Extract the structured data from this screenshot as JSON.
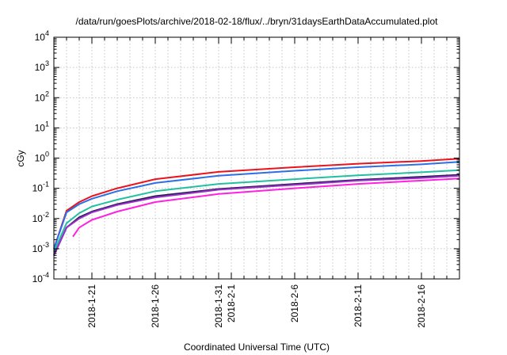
{
  "chart_data": {
    "type": "line",
    "title": "/data/run/goesPlots/archive/2018-02-18/flux/../bryn/31daysEarthDataAccumulated.plot",
    "xlabel": "Coordinated Universal Time (UTC)",
    "ylabel": "cGy",
    "yscale": "log",
    "ylim": [
      0.0001,
      10000
    ],
    "y_ticks": [
      {
        "exp": "-4",
        "value": 0.0001
      },
      {
        "exp": "-3",
        "value": 0.001
      },
      {
        "exp": "-2",
        "value": 0.01
      },
      {
        "exp": "-1",
        "value": 0.1
      },
      {
        "exp": "0",
        "value": 1
      },
      {
        "exp": "1",
        "value": 10
      },
      {
        "exp": "2",
        "value": 100
      },
      {
        "exp": "3",
        "value": 1000
      },
      {
        "exp": "4",
        "value": 10000
      }
    ],
    "y_tick_base": "10",
    "xlim": [
      "2018-01-18",
      "2018-02-19"
    ],
    "x_ticks": [
      {
        "date": "2018-01-21",
        "label": "2018-1-21"
      },
      {
        "date": "2018-01-26",
        "label": "2018-1-26"
      },
      {
        "date": "2018-01-31",
        "label": "2018-1-31"
      },
      {
        "date": "2018-02-01",
        "label": "2018-2-1"
      },
      {
        "date": "2018-02-06",
        "label": "2018-2-6"
      },
      {
        "date": "2018-02-11",
        "label": "2018-2-11"
      },
      {
        "date": "2018-02-16",
        "label": "2018-2-16"
      }
    ],
    "grid": true,
    "series": [
      {
        "color": "#e8141e",
        "x": [
          "2018-01-18",
          "2018-01-19",
          "2018-01-20",
          "2018-01-21",
          "2018-01-23",
          "2018-01-26",
          "2018-01-31",
          "2018-02-06",
          "2018-02-11",
          "2018-02-16",
          "2018-02-19"
        ],
        "values": [
          0.001,
          0.018,
          0.035,
          0.055,
          0.1,
          0.2,
          0.35,
          0.5,
          0.65,
          0.8,
          0.95
        ]
      },
      {
        "color": "#2e6fe6",
        "x": [
          "2018-01-18",
          "2018-01-19",
          "2018-01-20",
          "2018-01-21",
          "2018-01-23",
          "2018-01-26",
          "2018-01-31",
          "2018-02-06",
          "2018-02-11",
          "2018-02-16",
          "2018-02-19"
        ],
        "values": [
          0.001,
          0.016,
          0.03,
          0.045,
          0.08,
          0.15,
          0.26,
          0.38,
          0.5,
          0.62,
          0.75
        ]
      },
      {
        "color": "#22c0a0",
        "x": [
          "2018-01-18",
          "2018-01-19",
          "2018-01-20",
          "2018-01-21",
          "2018-01-23",
          "2018-01-26",
          "2018-01-31",
          "2018-02-06",
          "2018-02-11",
          "2018-02-16",
          "2018-02-19"
        ],
        "values": [
          0.0008,
          0.007,
          0.015,
          0.025,
          0.042,
          0.08,
          0.14,
          0.2,
          0.27,
          0.34,
          0.4
        ]
      },
      {
        "color": "#1e1e50",
        "x": [
          "2018-01-18",
          "2018-01-19",
          "2018-01-20",
          "2018-01-21",
          "2018-01-23",
          "2018-01-26",
          "2018-01-31",
          "2018-02-06",
          "2018-02-11",
          "2018-02-16",
          "2018-02-19"
        ],
        "values": [
          0.0006,
          0.005,
          0.011,
          0.017,
          0.03,
          0.055,
          0.095,
          0.14,
          0.19,
          0.24,
          0.28
        ]
      },
      {
        "color": "#9b2ec8",
        "x": [
          "2018-01-18",
          "2018-01-19",
          "2018-01-20",
          "2018-01-21",
          "2018-01-23",
          "2018-01-26",
          "2018-01-31",
          "2018-02-06",
          "2018-02-11",
          "2018-02-16",
          "2018-02-19"
        ],
        "values": [
          0.0006,
          0.005,
          0.01,
          0.016,
          0.028,
          0.05,
          0.09,
          0.13,
          0.18,
          0.22,
          0.26
        ]
      },
      {
        "color": "#ff20e0",
        "x": [
          "2018-01-19.5",
          "2018-01-20",
          "2018-01-21",
          "2018-01-23",
          "2018-01-26",
          "2018-01-31",
          "2018-02-06",
          "2018-02-11",
          "2018-02-16",
          "2018-02-19"
        ],
        "values": [
          0.0025,
          0.005,
          0.009,
          0.017,
          0.035,
          0.065,
          0.1,
          0.14,
          0.18,
          0.21
        ]
      }
    ]
  }
}
